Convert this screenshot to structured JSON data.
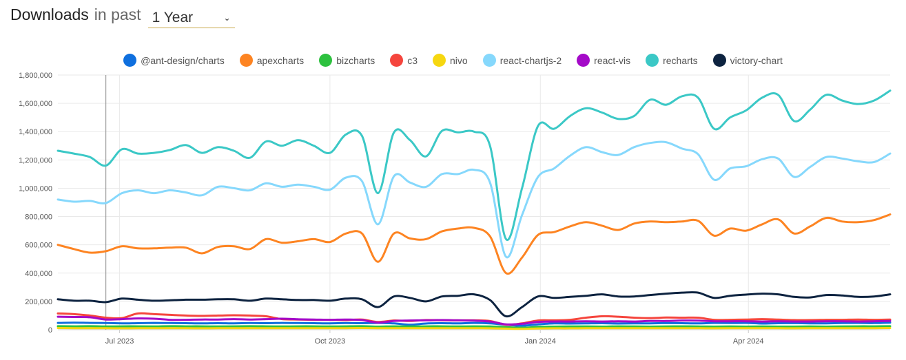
{
  "header": {
    "title": "Downloads",
    "subtitle": "in past",
    "period": "1 Year"
  },
  "chart_data": {
    "type": "line",
    "legend_position": "top-center",
    "grid": true,
    "ylim": [
      0,
      1800000
    ],
    "y_ticks": [
      "0",
      "200,000",
      "400,000",
      "600,000",
      "800,000",
      "1,000,000",
      "1,200,000",
      "1,400,000",
      "1,600,000",
      "1,800,000"
    ],
    "x_ticks": [
      {
        "label": "Jul 2023",
        "date": "2023-07-01"
      },
      {
        "label": "Oct 2023",
        "date": "2023-10-01"
      },
      {
        "label": "Jan 2024",
        "date": "2024-01-01"
      },
      {
        "label": "Apr 2024",
        "date": "2024-04-01"
      }
    ],
    "x_range": [
      "2023-06-04",
      "2024-06-02"
    ],
    "x": [
      "2023-06-04",
      "2023-06-11",
      "2023-06-18",
      "2023-06-25",
      "2023-07-02",
      "2023-07-09",
      "2023-07-16",
      "2023-07-23",
      "2023-07-30",
      "2023-08-06",
      "2023-08-13",
      "2023-08-20",
      "2023-08-27",
      "2023-09-03",
      "2023-09-10",
      "2023-09-17",
      "2023-09-24",
      "2023-10-01",
      "2023-10-08",
      "2023-10-15",
      "2023-10-22",
      "2023-10-29",
      "2023-11-05",
      "2023-11-12",
      "2023-11-19",
      "2023-11-26",
      "2023-12-03",
      "2023-12-10",
      "2023-12-17",
      "2023-12-24",
      "2023-12-31",
      "2024-01-07",
      "2024-01-14",
      "2024-01-21",
      "2024-01-28",
      "2024-02-04",
      "2024-02-11",
      "2024-02-18",
      "2024-02-25",
      "2024-03-03",
      "2024-03-10",
      "2024-03-17",
      "2024-03-24",
      "2024-03-31",
      "2024-04-07",
      "2024-04-14",
      "2024-04-21",
      "2024-04-28",
      "2024-05-05",
      "2024-05-12",
      "2024-05-19",
      "2024-05-26",
      "2024-06-02"
    ],
    "series": [
      {
        "name": "@ant-design/charts",
        "color": "#0f6fde",
        "values": [
          48000,
          50000,
          48000,
          47000,
          45000,
          46000,
          48000,
          47000,
          46000,
          45000,
          46000,
          45000,
          47000,
          46000,
          48000,
          47000,
          46000,
          45000,
          47000,
          46000,
          48000,
          45000,
          35000,
          44000,
          46000,
          45000,
          48000,
          45000,
          35000,
          28000,
          38000,
          45000,
          44000,
          45000,
          46000,
          44000,
          45000,
          45000,
          47000,
          46000,
          45000,
          48000,
          47000,
          48000,
          44000,
          46000,
          47000,
          45000,
          45000,
          47000,
          48000,
          47000,
          50000
        ]
      },
      {
        "name": "apexcharts",
        "color": "#fd8422",
        "values": [
          600000,
          570000,
          545000,
          555000,
          590000,
          575000,
          575000,
          580000,
          580000,
          540000,
          585000,
          590000,
          570000,
          640000,
          615000,
          625000,
          640000,
          620000,
          680000,
          680000,
          480000,
          680000,
          645000,
          640000,
          695000,
          715000,
          720000,
          660000,
          400000,
          510000,
          670000,
          690000,
          730000,
          760000,
          735000,
          705000,
          750000,
          765000,
          760000,
          765000,
          770000,
          665000,
          715000,
          700000,
          745000,
          780000,
          680000,
          730000,
          790000,
          765000,
          760000,
          775000,
          815000
        ]
      },
      {
        "name": "bizcharts",
        "color": "#2dc13f",
        "values": [
          25000,
          24000,
          25000,
          23000,
          24000,
          24000,
          23000,
          25000,
          24000,
          24000,
          23000,
          24000,
          25000,
          24000,
          23000,
          24000,
          24000,
          23000,
          24000,
          25000,
          22000,
          24000,
          23000,
          24000,
          24000,
          23000,
          24000,
          23000,
          18000,
          14000,
          20000,
          22000,
          23000,
          23000,
          22000,
          24000,
          23000,
          22000,
          23000,
          24000,
          23000,
          22000,
          23000,
          22000,
          23000,
          22000,
          22000,
          23000,
          22000,
          23000,
          24000,
          24000,
          25000
        ]
      },
      {
        "name": "c3",
        "color": "#f5453d",
        "values": [
          115000,
          110000,
          100000,
          85000,
          82000,
          115000,
          110000,
          105000,
          100000,
          98000,
          100000,
          102000,
          100000,
          95000,
          75000,
          72000,
          70000,
          70000,
          68000,
          72000,
          55000,
          65000,
          62000,
          68000,
          67000,
          66000,
          66000,
          62000,
          35000,
          45000,
          65000,
          66000,
          70000,
          85000,
          95000,
          92000,
          85000,
          82000,
          86000,
          85000,
          85000,
          70000,
          70000,
          72000,
          75000,
          72000,
          68000,
          68000,
          70000,
          70000,
          72000,
          70000,
          72000
        ]
      },
      {
        "name": "nivo",
        "color": "#f6d710",
        "values": [
          12000,
          11000,
          11000,
          11000,
          10000,
          11000,
          11000,
          11000,
          11000,
          10000,
          11000,
          11000,
          11000,
          11000,
          11000,
          11000,
          11000,
          11000,
          11000,
          12000,
          11000,
          11000,
          11000,
          11000,
          11000,
          11000,
          11000,
          10000,
          8000,
          6000,
          9000,
          10000,
          10000,
          11000,
          11000,
          11000,
          11000,
          11000,
          11000,
          11000,
          11000,
          10000,
          11000,
          11000,
          11000,
          11000,
          10000,
          11000,
          11000,
          11000,
          11000,
          11000,
          12000
        ]
      },
      {
        "name": "react-chartjs-2",
        "color": "#86d8fc",
        "values": [
          920000,
          905000,
          910000,
          895000,
          965000,
          985000,
          965000,
          985000,
          970000,
          950000,
          1010000,
          1000000,
          985000,
          1035000,
          1010000,
          1025000,
          1010000,
          990000,
          1075000,
          1050000,
          745000,
          1085000,
          1040000,
          1010000,
          1100000,
          1100000,
          1130000,
          1040000,
          515000,
          810000,
          1080000,
          1140000,
          1230000,
          1290000,
          1255000,
          1235000,
          1290000,
          1320000,
          1325000,
          1280000,
          1240000,
          1060000,
          1140000,
          1155000,
          1205000,
          1210000,
          1080000,
          1150000,
          1220000,
          1210000,
          1190000,
          1185000,
          1245000
        ]
      },
      {
        "name": "react-vis",
        "color": "#a40ac8",
        "values": [
          92000,
          90000,
          88000,
          72000,
          75000,
          80000,
          78000,
          70000,
          70000,
          72000,
          72000,
          75000,
          72000,
          75000,
          78000,
          74000,
          72000,
          70000,
          72000,
          68000,
          50000,
          62000,
          65000,
          66000,
          68000,
          66000,
          64000,
          58000,
          38000,
          42000,
          55000,
          58000,
          58000,
          60000,
          58000,
          60000,
          58000,
          62000,
          62000,
          65000,
          64000,
          60000,
          60000,
          60000,
          58000,
          60000,
          58000,
          58000,
          60000,
          60000,
          58000,
          60000,
          62000
        ]
      },
      {
        "name": "recharts",
        "color": "#3bc8c6",
        "values": [
          1265000,
          1245000,
          1220000,
          1160000,
          1275000,
          1245000,
          1250000,
          1270000,
          1305000,
          1250000,
          1290000,
          1265000,
          1215000,
          1330000,
          1300000,
          1340000,
          1300000,
          1250000,
          1380000,
          1370000,
          965000,
          1395000,
          1340000,
          1225000,
          1405000,
          1395000,
          1400000,
          1300000,
          640000,
          1000000,
          1440000,
          1420000,
          1510000,
          1565000,
          1535000,
          1490000,
          1510000,
          1625000,
          1590000,
          1650000,
          1640000,
          1420000,
          1500000,
          1550000,
          1640000,
          1660000,
          1475000,
          1555000,
          1660000,
          1620000,
          1595000,
          1620000,
          1690000
        ]
      },
      {
        "name": "victory-chart",
        "color": "#0d2340",
        "values": [
          215000,
          205000,
          205000,
          195000,
          220000,
          212000,
          205000,
          208000,
          212000,
          212000,
          215000,
          215000,
          205000,
          220000,
          215000,
          210000,
          210000,
          205000,
          220000,
          215000,
          160000,
          235000,
          225000,
          200000,
          235000,
          240000,
          250000,
          210000,
          95000,
          160000,
          235000,
          225000,
          232000,
          240000,
          250000,
          235000,
          235000,
          245000,
          255000,
          262000,
          262000,
          225000,
          240000,
          248000,
          255000,
          250000,
          232000,
          228000,
          245000,
          242000,
          232000,
          235000,
          250000
        ]
      }
    ]
  }
}
